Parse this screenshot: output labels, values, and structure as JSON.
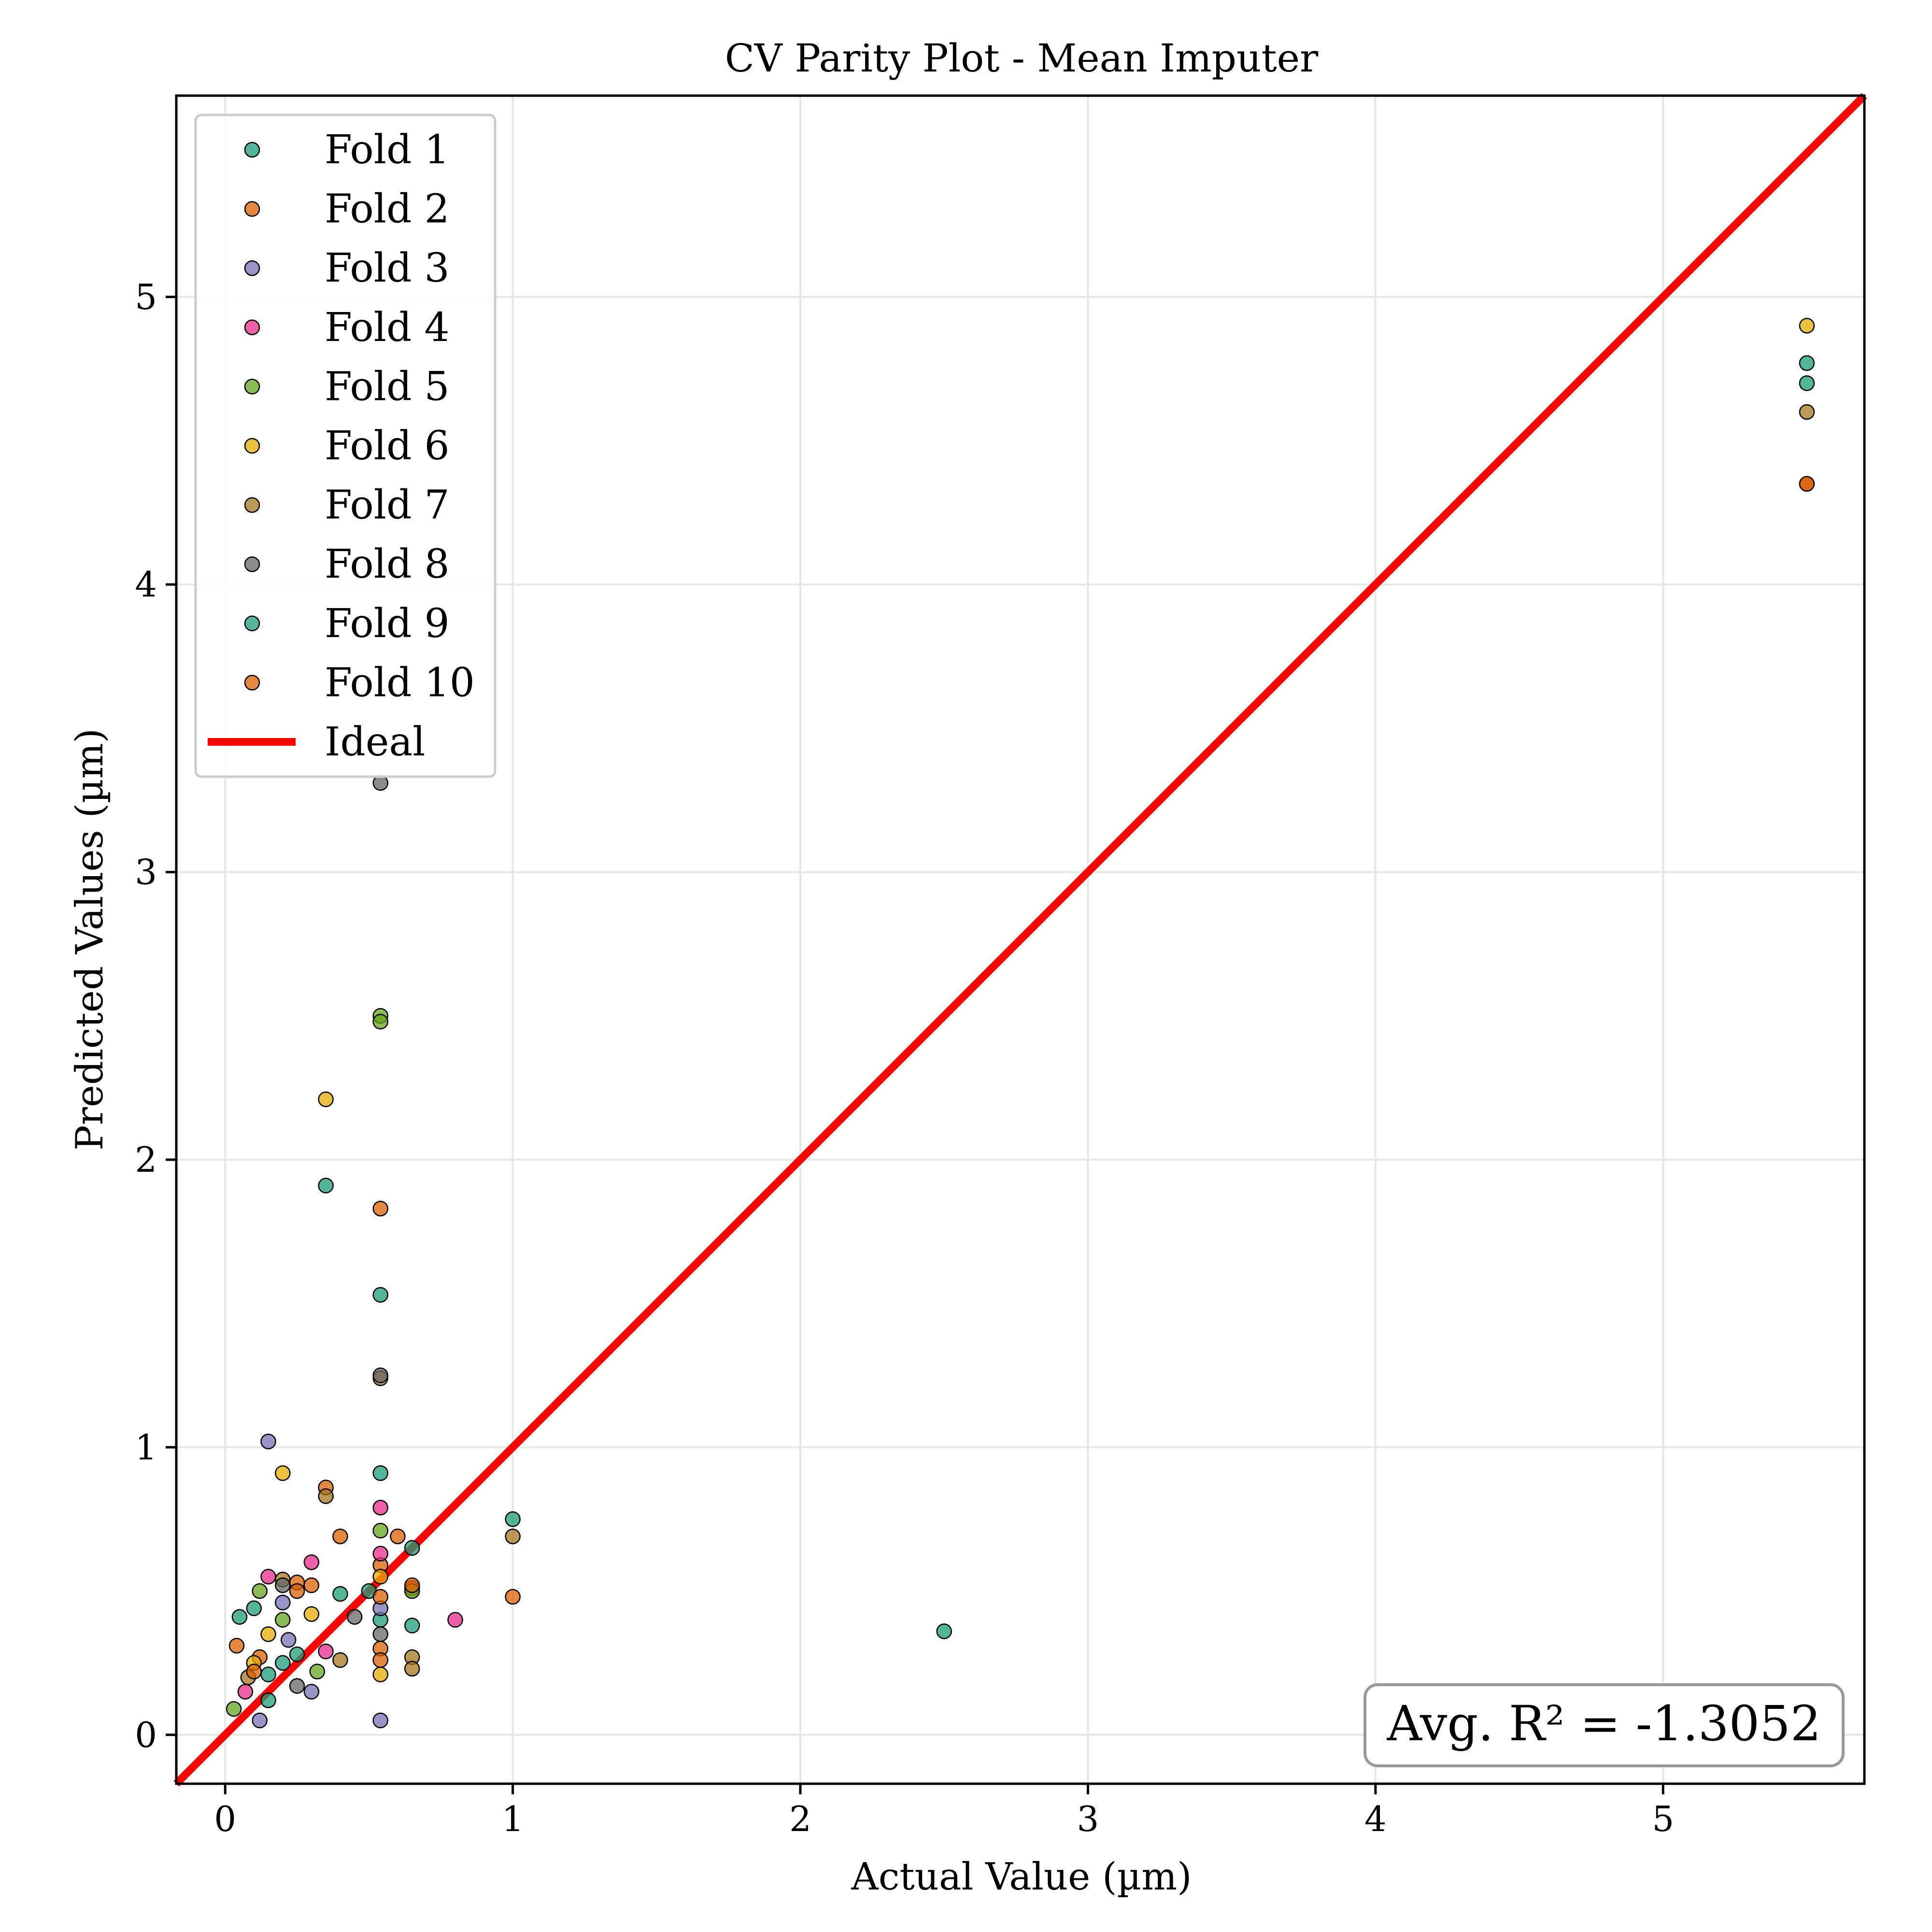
{
  "chart_data": {
    "type": "scatter",
    "title": "CV Parity Plot - Mean Imputer",
    "xlabel": "Actual Value (µm)",
    "ylabel": "Predicted Values (µm)",
    "xlim": [
      -0.17,
      5.7
    ],
    "ylim": [
      -0.17,
      5.7
    ],
    "x_ticks": [
      0,
      1,
      2,
      3,
      4,
      5
    ],
    "y_ticks": [
      0,
      1,
      2,
      3,
      4,
      5
    ],
    "x_tick_labels": [
      "0",
      "1",
      "2",
      "3",
      "4",
      "5"
    ],
    "y_tick_labels": [
      "0",
      "1",
      "2",
      "3",
      "4",
      "5"
    ],
    "grid": true,
    "legend_position": "top-left",
    "annotation": "Avg. R² = -1.3052",
    "annotation_position": "bottom-right",
    "ideal_line": {
      "name": "Ideal",
      "color": "#ff0000",
      "x": [
        -0.17,
        5.7
      ],
      "y": [
        -0.17,
        5.7
      ]
    },
    "series": [
      {
        "name": "Fold 1",
        "color": "#1b9e77",
        "points": [
          [
            0.05,
            0.41
          ],
          [
            0.1,
            0.44
          ],
          [
            0.15,
            0.12
          ],
          [
            0.2,
            0.25
          ],
          [
            0.25,
            0.28
          ],
          [
            0.4,
            0.49
          ],
          [
            0.54,
            1.53
          ],
          [
            0.54,
            0.4
          ],
          [
            0.65,
            0.38
          ],
          [
            1.0,
            0.75
          ],
          [
            5.5,
            4.77
          ]
        ]
      },
      {
        "name": "Fold 2",
        "color": "#d95f02",
        "points": [
          [
            0.04,
            0.31
          ],
          [
            0.12,
            0.27
          ],
          [
            0.25,
            0.53
          ],
          [
            0.35,
            0.86
          ],
          [
            0.4,
            0.69
          ],
          [
            0.54,
            1.83
          ],
          [
            0.54,
            0.59
          ],
          [
            0.6,
            0.69
          ],
          [
            0.65,
            0.51
          ],
          [
            1.0,
            0.48
          ],
          [
            5.5,
            4.35
          ]
        ]
      },
      {
        "name": "Fold 3",
        "color": "#7570b3",
        "points": [
          [
            0.12,
            0.05
          ],
          [
            0.15,
            1.02
          ],
          [
            0.2,
            0.46
          ],
          [
            0.3,
            0.15
          ],
          [
            0.54,
            0.05
          ],
          [
            0.54,
            0.44
          ],
          [
            0.22,
            0.33
          ]
        ]
      },
      {
        "name": "Fold 4",
        "color": "#e7298a",
        "points": [
          [
            0.07,
            0.15
          ],
          [
            0.15,
            0.55
          ],
          [
            0.3,
            0.6
          ],
          [
            0.35,
            0.29
          ],
          [
            0.54,
            0.79
          ],
          [
            0.54,
            0.63
          ],
          [
            0.8,
            0.4
          ]
        ]
      },
      {
        "name": "Fold 5",
        "color": "#66a61e",
        "points": [
          [
            0.03,
            0.09
          ],
          [
            0.12,
            0.5
          ],
          [
            0.2,
            0.4
          ],
          [
            0.32,
            0.22
          ],
          [
            0.54,
            2.5
          ],
          [
            0.54,
            2.48
          ],
          [
            0.54,
            0.71
          ],
          [
            0.65,
            0.5
          ]
        ]
      },
      {
        "name": "Fold 6",
        "color": "#e6ab02",
        "points": [
          [
            0.1,
            0.25
          ],
          [
            0.15,
            0.35
          ],
          [
            0.2,
            0.91
          ],
          [
            0.3,
            0.42
          ],
          [
            0.35,
            2.21
          ],
          [
            0.54,
            0.21
          ],
          [
            0.54,
            0.55
          ],
          [
            5.5,
            4.9
          ]
        ]
      },
      {
        "name": "Fold 7",
        "color": "#a6761d",
        "points": [
          [
            0.08,
            0.2
          ],
          [
            0.2,
            0.54
          ],
          [
            0.35,
            0.83
          ],
          [
            0.4,
            0.26
          ],
          [
            0.54,
            1.24
          ],
          [
            0.65,
            0.27
          ],
          [
            0.65,
            0.23
          ],
          [
            1.0,
            0.69
          ],
          [
            5.5,
            4.6
          ]
        ]
      },
      {
        "name": "Fold 8",
        "color": "#666666",
        "points": [
          [
            0.2,
            0.52
          ],
          [
            0.25,
            0.17
          ],
          [
            0.45,
            0.41
          ],
          [
            0.54,
            3.31
          ],
          [
            0.54,
            1.25
          ],
          [
            0.54,
            0.35
          ]
        ]
      },
      {
        "name": "Fold 9",
        "color": "#1b9e77",
        "points": [
          [
            0.15,
            0.21
          ],
          [
            0.35,
            1.91
          ],
          [
            0.54,
            0.91
          ],
          [
            0.5,
            0.5
          ],
          [
            0.65,
            0.65
          ],
          [
            2.5,
            0.36
          ],
          [
            5.5,
            4.7
          ]
        ]
      },
      {
        "name": "Fold 10",
        "color": "#d95f02",
        "points": [
          [
            0.1,
            0.22
          ],
          [
            0.25,
            0.5
          ],
          [
            0.3,
            0.52
          ],
          [
            0.54,
            0.3
          ],
          [
            0.54,
            0.26
          ],
          [
            0.54,
            0.48
          ],
          [
            0.65,
            0.52
          ],
          [
            5.5,
            4.35
          ]
        ]
      }
    ]
  }
}
